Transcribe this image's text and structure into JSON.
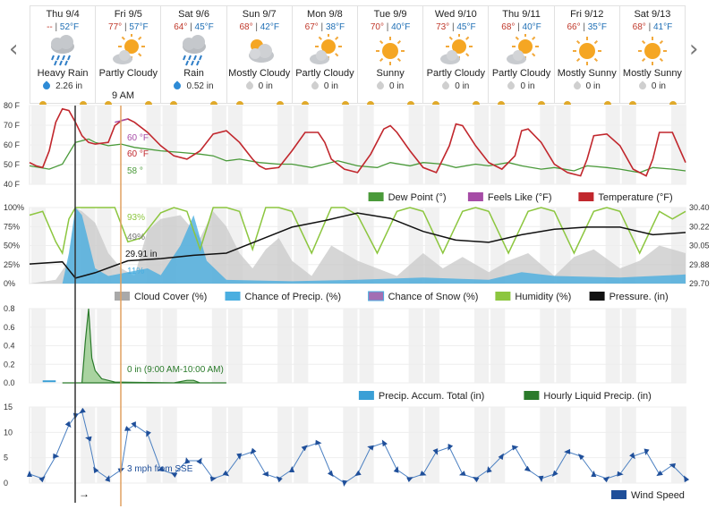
{
  "nav": {
    "prev": "‹",
    "next": "›"
  },
  "days": [
    {
      "date": "Thu 9/4",
      "hi": "--",
      "lo": "52°F",
      "icon": "rain-cloud-icon",
      "cond": "Heavy Rain",
      "precip": "2.26 in",
      "wet": true
    },
    {
      "date": "Fri 9/5",
      "hi": "77°",
      "lo": "57°F",
      "icon": "partly-cloudy-icon",
      "cond": "Partly Cloudy",
      "precip": "",
      "wet": false
    },
    {
      "date": "Sat 9/6",
      "hi": "64°",
      "lo": "45°F",
      "icon": "rain-cloud-icon",
      "cond": "Rain",
      "precip": "0.52 in",
      "wet": true
    },
    {
      "date": "Sun 9/7",
      "hi": "68°",
      "lo": "42°F",
      "icon": "mostly-cloudy-icon",
      "cond": "Mostly Cloudy",
      "precip": "0 in",
      "wet": false
    },
    {
      "date": "Mon 9/8",
      "hi": "67°",
      "lo": "38°F",
      "icon": "partly-cloudy-icon",
      "cond": "Partly Cloudy",
      "precip": "0 in",
      "wet": false
    },
    {
      "date": "Tue 9/9",
      "hi": "70°",
      "lo": "40°F",
      "icon": "sunny-icon",
      "cond": "Sunny",
      "precip": "0 in",
      "wet": false
    },
    {
      "date": "Wed 9/10",
      "hi": "73°",
      "lo": "45°F",
      "icon": "partly-cloudy-icon",
      "cond": "Partly Cloudy",
      "precip": "0 in",
      "wet": false
    },
    {
      "date": "Thu 9/11",
      "hi": "68°",
      "lo": "40°F",
      "icon": "partly-cloudy-icon",
      "cond": "Partly Cloudy",
      "precip": "0 in",
      "wet": false
    },
    {
      "date": "Fri 9/12",
      "hi": "66°",
      "lo": "35°F",
      "icon": "sunny-icon",
      "cond": "Mostly Sunny",
      "precip": "0 in",
      "wet": false
    },
    {
      "date": "Sat 9/13",
      "hi": "68°",
      "lo": "41°F",
      "icon": "sunny-icon",
      "cond": "Mostly Sunny",
      "precip": "0 in",
      "wet": false
    }
  ],
  "hover_time": "9 AM",
  "colors": {
    "temp": "#c1272d",
    "feels": "#a64ca6",
    "dew": "#4a9a3a",
    "cloud": "#c8c8c8",
    "precip": "#4aaee0",
    "humidity": "#8cc63f",
    "pressure": "#111111",
    "accum": "#3a9fd6",
    "liquid": "#2a7a2a",
    "wind": "#1f4f9a",
    "cursor": "#e0a060"
  },
  "chart_data": [
    {
      "type": "line",
      "yticks": [
        "80 F",
        "70 F",
        "60 F",
        "50 F",
        "40 F"
      ],
      "ylim": [
        35,
        82
      ],
      "day_x": [
        0,
        1,
        2,
        3,
        4,
        5,
        6,
        7,
        8,
        9,
        10
      ],
      "series": [
        {
          "name": "Temperature (°F)",
          "x": [
            0,
            0.1,
            0.2,
            0.3,
            0.4,
            0.5,
            0.6,
            0.7,
            0.8,
            0.9,
            1.0,
            1.2,
            1.3,
            1.4,
            1.5,
            1.6,
            1.8,
            2.0,
            2.2,
            2.4,
            2.6,
            2.8,
            3.0,
            3.2,
            3.4,
            3.5,
            3.6,
            3.8,
            4.0,
            4.2,
            4.4,
            4.5,
            4.6,
            4.8,
            5.0,
            5.2,
            5.4,
            5.5,
            5.6,
            5.8,
            6.0,
            6.2,
            6.4,
            6.5,
            6.6,
            6.8,
            7.0,
            7.2,
            7.4,
            7.5,
            7.6,
            7.8,
            8.0,
            8.2,
            8.4,
            8.5,
            8.6,
            8.8,
            9.0,
            9.2,
            9.4,
            9.5,
            9.6,
            9.8,
            10
          ],
          "y": [
            48,
            46,
            45,
            55,
            72,
            80,
            79,
            72,
            64,
            60,
            59,
            60,
            70,
            73,
            74,
            72,
            66,
            58,
            52,
            50,
            55,
            65,
            67,
            60,
            50,
            46,
            44,
            45,
            55,
            66,
            66,
            60,
            50,
            44,
            42,
            53,
            68,
            70,
            66,
            55,
            45,
            42,
            58,
            71,
            70,
            58,
            48,
            44,
            52,
            67,
            68,
            60,
            47,
            42,
            40,
            50,
            64,
            65,
            58,
            44,
            40,
            50,
            66,
            66,
            48
          ]
        },
        {
          "name": "Feels Like (°F)",
          "x": [
            1.3,
            1.5
          ],
          "y": [
            72,
            74
          ]
        },
        {
          "name": "Dew Point (°)",
          "x": [
            0,
            0.3,
            0.5,
            0.7,
            0.9,
            1.0,
            1.2,
            1.4,
            1.6,
            1.8,
            2.0,
            2.3,
            2.6,
            2.8,
            3.0,
            3.2,
            3.5,
            3.8,
            4.0,
            4.3,
            4.5,
            4.7,
            5.0,
            5.3,
            5.5,
            5.8,
            6.0,
            6.3,
            6.5,
            6.8,
            7.0,
            7.3,
            7.5,
            7.8,
            8.0,
            8.3,
            8.5,
            8.8,
            9.0,
            9.3,
            9.5,
            9.8,
            10
          ],
          "y": [
            46,
            44,
            47,
            60,
            62,
            60,
            58,
            59,
            57,
            56,
            55,
            54,
            53,
            52,
            49,
            50,
            48,
            47,
            47,
            45,
            47,
            49,
            46,
            45,
            48,
            46,
            48,
            47,
            45,
            47,
            46,
            48,
            46,
            44,
            45,
            43,
            46,
            45,
            44,
            42,
            45,
            44,
            43
          ]
        }
      ],
      "annotations": [
        {
          "text": "60 °F",
          "color": "feels"
        },
        {
          "text": "60 °F",
          "color": "temp"
        },
        {
          "text": "58 °",
          "color": "dew"
        }
      ],
      "legend": [
        "Dew Point (°)",
        "Feels Like (°F)",
        "Temperature (°F)"
      ]
    },
    {
      "type": "area",
      "yticks": [
        "100%",
        "75%",
        "50%",
        "25%",
        "0%"
      ],
      "yticks_right": [
        "30.40",
        "30.22",
        "30.05",
        "29.88",
        "29.70"
      ],
      "ylim": [
        0,
        100
      ],
      "ylim_right": [
        29.7,
        30.4
      ],
      "series": [
        {
          "name": "Cloud Cover (%)",
          "x": [
            0,
            0.4,
            0.6,
            0.7,
            0.8,
            1.0,
            1.2,
            1.4,
            1.6,
            1.8,
            2.0,
            2.3,
            2.6,
            2.8,
            3.0,
            3.2,
            3.4,
            3.6,
            3.8,
            4.0,
            4.3,
            4.6,
            5.0,
            5.3,
            5.6,
            6.0,
            6.3,
            6.6,
            7.0,
            7.3,
            7.6,
            8.0,
            8.3,
            8.6,
            9.0,
            9.3,
            9.6,
            10
          ],
          "y": [
            0,
            5,
            30,
            100,
            95,
            80,
            40,
            20,
            10,
            70,
            85,
            90,
            60,
            95,
            75,
            40,
            20,
            45,
            60,
            30,
            10,
            50,
            30,
            20,
            10,
            40,
            20,
            35,
            15,
            30,
            40,
            10,
            35,
            45,
            20,
            30,
            50,
            40
          ]
        },
        {
          "name": "Chance of Precip. (%)",
          "x": [
            0,
            0.5,
            0.6,
            0.7,
            0.8,
            1.0,
            1.2,
            1.5,
            1.8,
            2.0,
            2.3,
            2.5,
            2.7,
            3.0,
            4.0,
            5.0,
            6.0,
            7.0,
            7.5,
            8.0,
            9.0,
            10
          ],
          "y": [
            0,
            0,
            40,
            100,
            90,
            20,
            10,
            15,
            20,
            11,
            50,
            90,
            30,
            5,
            3,
            5,
            8,
            5,
            15,
            10,
            8,
            12
          ]
        },
        {
          "name": "Chance of Snow (%)",
          "x": [
            0,
            10
          ],
          "y": [
            0,
            0
          ]
        },
        {
          "name": "Humidity (%)",
          "x": [
            0,
            0.2,
            0.4,
            0.5,
            0.6,
            0.7,
            1.0,
            1.3,
            1.5,
            1.7,
            2.0,
            2.2,
            2.4,
            2.6,
            2.8,
            3.0,
            3.2,
            3.4,
            3.6,
            3.8,
            4.0,
            4.3,
            4.6,
            4.8,
            5.0,
            5.3,
            5.6,
            5.8,
            6.0,
            6.3,
            6.6,
            6.8,
            7.0,
            7.3,
            7.6,
            7.8,
            8.0,
            8.3,
            8.6,
            8.8,
            9.0,
            9.3,
            9.6,
            9.8,
            10
          ],
          "y": [
            90,
            95,
            55,
            40,
            85,
            100,
            100,
            100,
            55,
            60,
            93,
            100,
            95,
            45,
            100,
            100,
            95,
            45,
            100,
            100,
            95,
            40,
            100,
            100,
            90,
            40,
            95,
            100,
            95,
            40,
            95,
            100,
            95,
            40,
            95,
            100,
            95,
            40,
            95,
            100,
            95,
            40,
            95,
            85,
            95
          ]
        },
        {
          "name": "Pressure. (in)",
          "x": [
            0,
            0.5,
            0.7,
            1.0,
            1.5,
            2.0,
            2.5,
            3.0,
            3.5,
            4.0,
            4.5,
            5.0,
            5.5,
            6.0,
            6.5,
            7.0,
            7.5,
            8.0,
            8.5,
            9.0,
            9.5,
            10
          ],
          "y": [
            29.88,
            29.9,
            29.75,
            29.8,
            29.91,
            29.93,
            29.96,
            29.98,
            30.1,
            30.22,
            30.28,
            30.35,
            30.3,
            30.18,
            30.1,
            30.08,
            30.15,
            30.2,
            30.22,
            30.22,
            30.15,
            30.17
          ]
        }
      ],
      "annotations": [
        {
          "text": "93%",
          "color": "humidity"
        },
        {
          "text": "49%",
          "color": "cloud"
        },
        {
          "text": "29.91 in",
          "color": "pressure"
        },
        {
          "text": "11%",
          "color": "precip"
        }
      ],
      "legend": [
        "Cloud Cover (%)",
        "Chance of Precip. (%)",
        "Chance of Snow (%)",
        "Humidity (%)",
        "Pressure. (in)"
      ]
    },
    {
      "type": "area",
      "yticks": [
        "0.8",
        "0.6",
        "0.4",
        "0.2",
        "0.0"
      ],
      "ylim": [
        0,
        0.9
      ],
      "series": [
        {
          "name": "Precip. Accum. Total (in)",
          "x": [
            0.2,
            0.4
          ],
          "y": [
            0.02,
            0.02
          ]
        },
        {
          "name": "Hourly Liquid Precip. (in)",
          "x": [
            0.5,
            0.8,
            0.85,
            0.9,
            0.95,
            1.0,
            1.1,
            1.3,
            2.2,
            2.4,
            2.5,
            2.6,
            3.0
          ],
          "y": [
            0,
            0,
            0.5,
            0.9,
            0.3,
            0.15,
            0.05,
            0.01,
            0.0,
            0.03,
            0.03,
            0.0,
            0.0
          ]
        }
      ],
      "annotations": [
        {
          "text": "0 in (9:00 AM-10:00 AM)",
          "color": "liquid"
        }
      ],
      "legend": [
        "Precip. Accum. Total (in)",
        "Hourly Liquid Precip. (in)"
      ]
    },
    {
      "type": "line",
      "yticks": [
        "15",
        "10",
        "5",
        "0"
      ],
      "ylim": [
        0,
        17
      ],
      "series": [
        {
          "name": "Wind Speed",
          "x": [
            0,
            0.2,
            0.4,
            0.6,
            0.7,
            0.8,
            0.9,
            1.0,
            1.2,
            1.4,
            1.5,
            1.6,
            1.8,
            2.0,
            2.2,
            2.4,
            2.6,
            2.8,
            3.0,
            3.2,
            3.4,
            3.6,
            3.8,
            4.0,
            4.2,
            4.4,
            4.6,
            4.8,
            5.0,
            5.2,
            5.4,
            5.6,
            5.8,
            6.0,
            6.2,
            6.4,
            6.6,
            6.8,
            7.0,
            7.2,
            7.4,
            7.6,
            7.8,
            8.0,
            8.2,
            8.4,
            8.6,
            8.8,
            9.0,
            9.2,
            9.4,
            9.6,
            9.8,
            10
          ],
          "y": [
            2,
            1,
            6,
            13,
            15,
            16,
            10,
            3,
            1,
            3,
            12,
            13,
            11,
            3,
            2,
            5,
            5,
            1,
            2,
            6,
            7,
            2,
            1,
            3,
            8,
            9,
            2,
            0,
            2,
            8,
            9,
            3,
            1,
            2,
            7,
            8,
            2,
            1,
            3,
            6,
            8,
            3,
            1,
            2,
            7,
            6,
            2,
            1,
            2,
            6,
            7,
            2,
            4,
            1
          ]
        }
      ],
      "annotations": [
        {
          "text": "3 mph from SSE",
          "color": "wind"
        },
        {
          "text": "→",
          "color": "pressure"
        }
      ],
      "legend": [
        "Wind Speed"
      ]
    }
  ]
}
